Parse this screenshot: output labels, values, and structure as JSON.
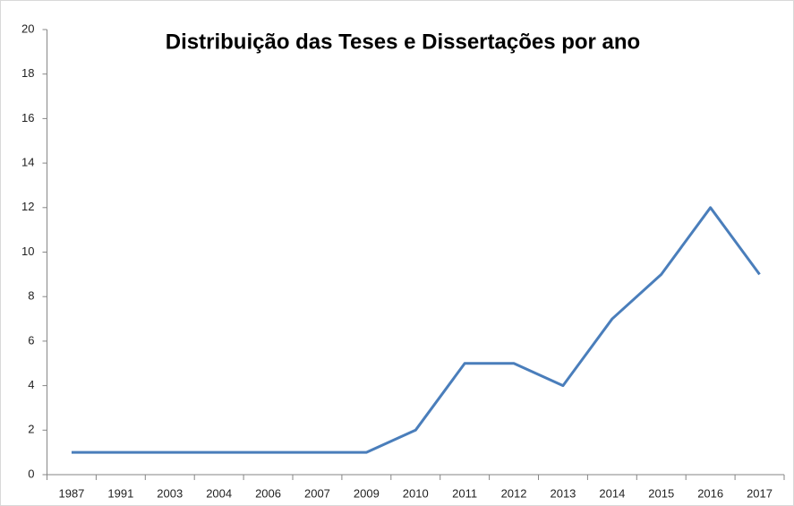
{
  "chart_data": {
    "type": "line",
    "title": "Distribuição das Teses e Dissertações por ano",
    "categories": [
      "1987",
      "1991",
      "2003",
      "2004",
      "2006",
      "2007",
      "2009",
      "2010",
      "2011",
      "2012",
      "2013",
      "2014",
      "2015",
      "2016",
      "2017"
    ],
    "values": [
      1,
      1,
      1,
      1,
      1,
      1,
      1,
      2,
      5,
      5,
      4,
      7,
      9,
      12,
      9
    ],
    "color": "#4a7ebb",
    "ylim": [
      0,
      20
    ],
    "yticks": [
      0,
      2,
      4,
      6,
      8,
      10,
      12,
      14,
      16,
      18,
      20
    ],
    "grid": false
  }
}
